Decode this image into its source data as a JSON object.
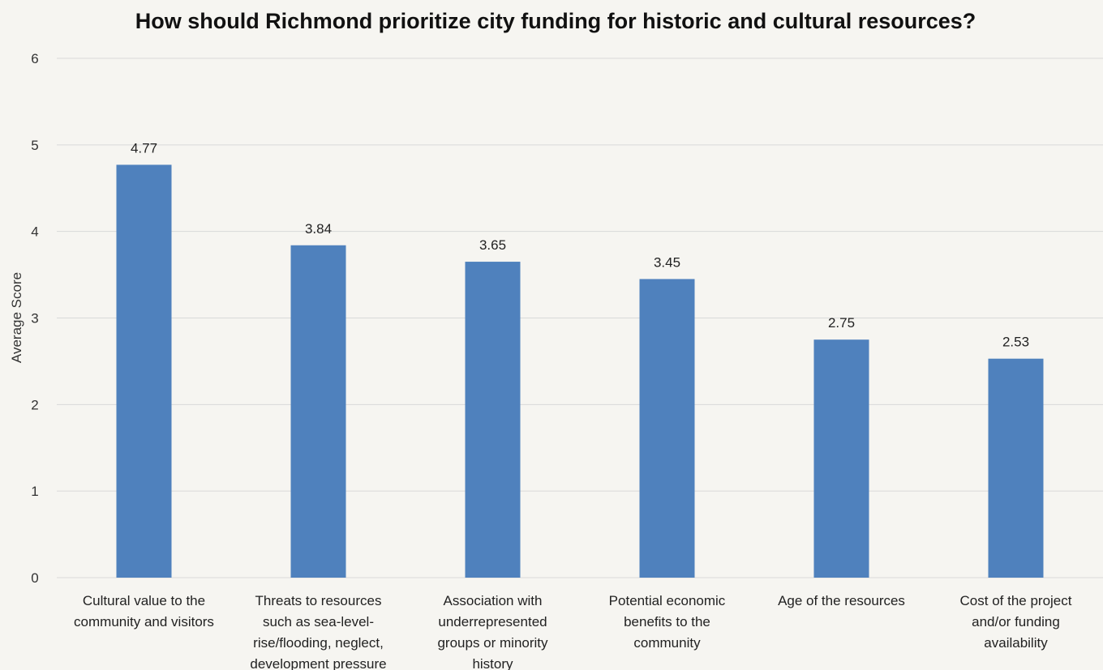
{
  "chart_data": {
    "type": "bar",
    "title": "How should Richmond prioritize city funding for historic and cultural resources?",
    "xlabel": "",
    "ylabel": "Average Score",
    "ylim": [
      0,
      6
    ],
    "yticks": [
      0,
      1,
      2,
      3,
      4,
      5,
      6
    ],
    "grid": true,
    "legend": "none",
    "colors": {
      "bar": "#4f81bd",
      "grid": "#d9d9d9",
      "background": "#f6f5f1"
    },
    "categories": [
      [
        "Cultural value to the",
        "community and visitors"
      ],
      [
        "Threats to resources",
        "such as sea-level-",
        "rise/flooding, neglect,",
        "development pressure"
      ],
      [
        "Association with",
        "underrepresented",
        "groups or minority",
        "history"
      ],
      [
        "Potential economic",
        "benefits to the",
        "community"
      ],
      [
        "Age of the resources"
      ],
      [
        "Cost of the project",
        "and/or funding",
        "availability"
      ]
    ],
    "values": [
      4.77,
      3.84,
      3.65,
      3.45,
      2.75,
      2.53
    ],
    "data_labels": [
      "4.77",
      "3.84",
      "3.65",
      "3.45",
      "2.75",
      "2.53"
    ]
  }
}
